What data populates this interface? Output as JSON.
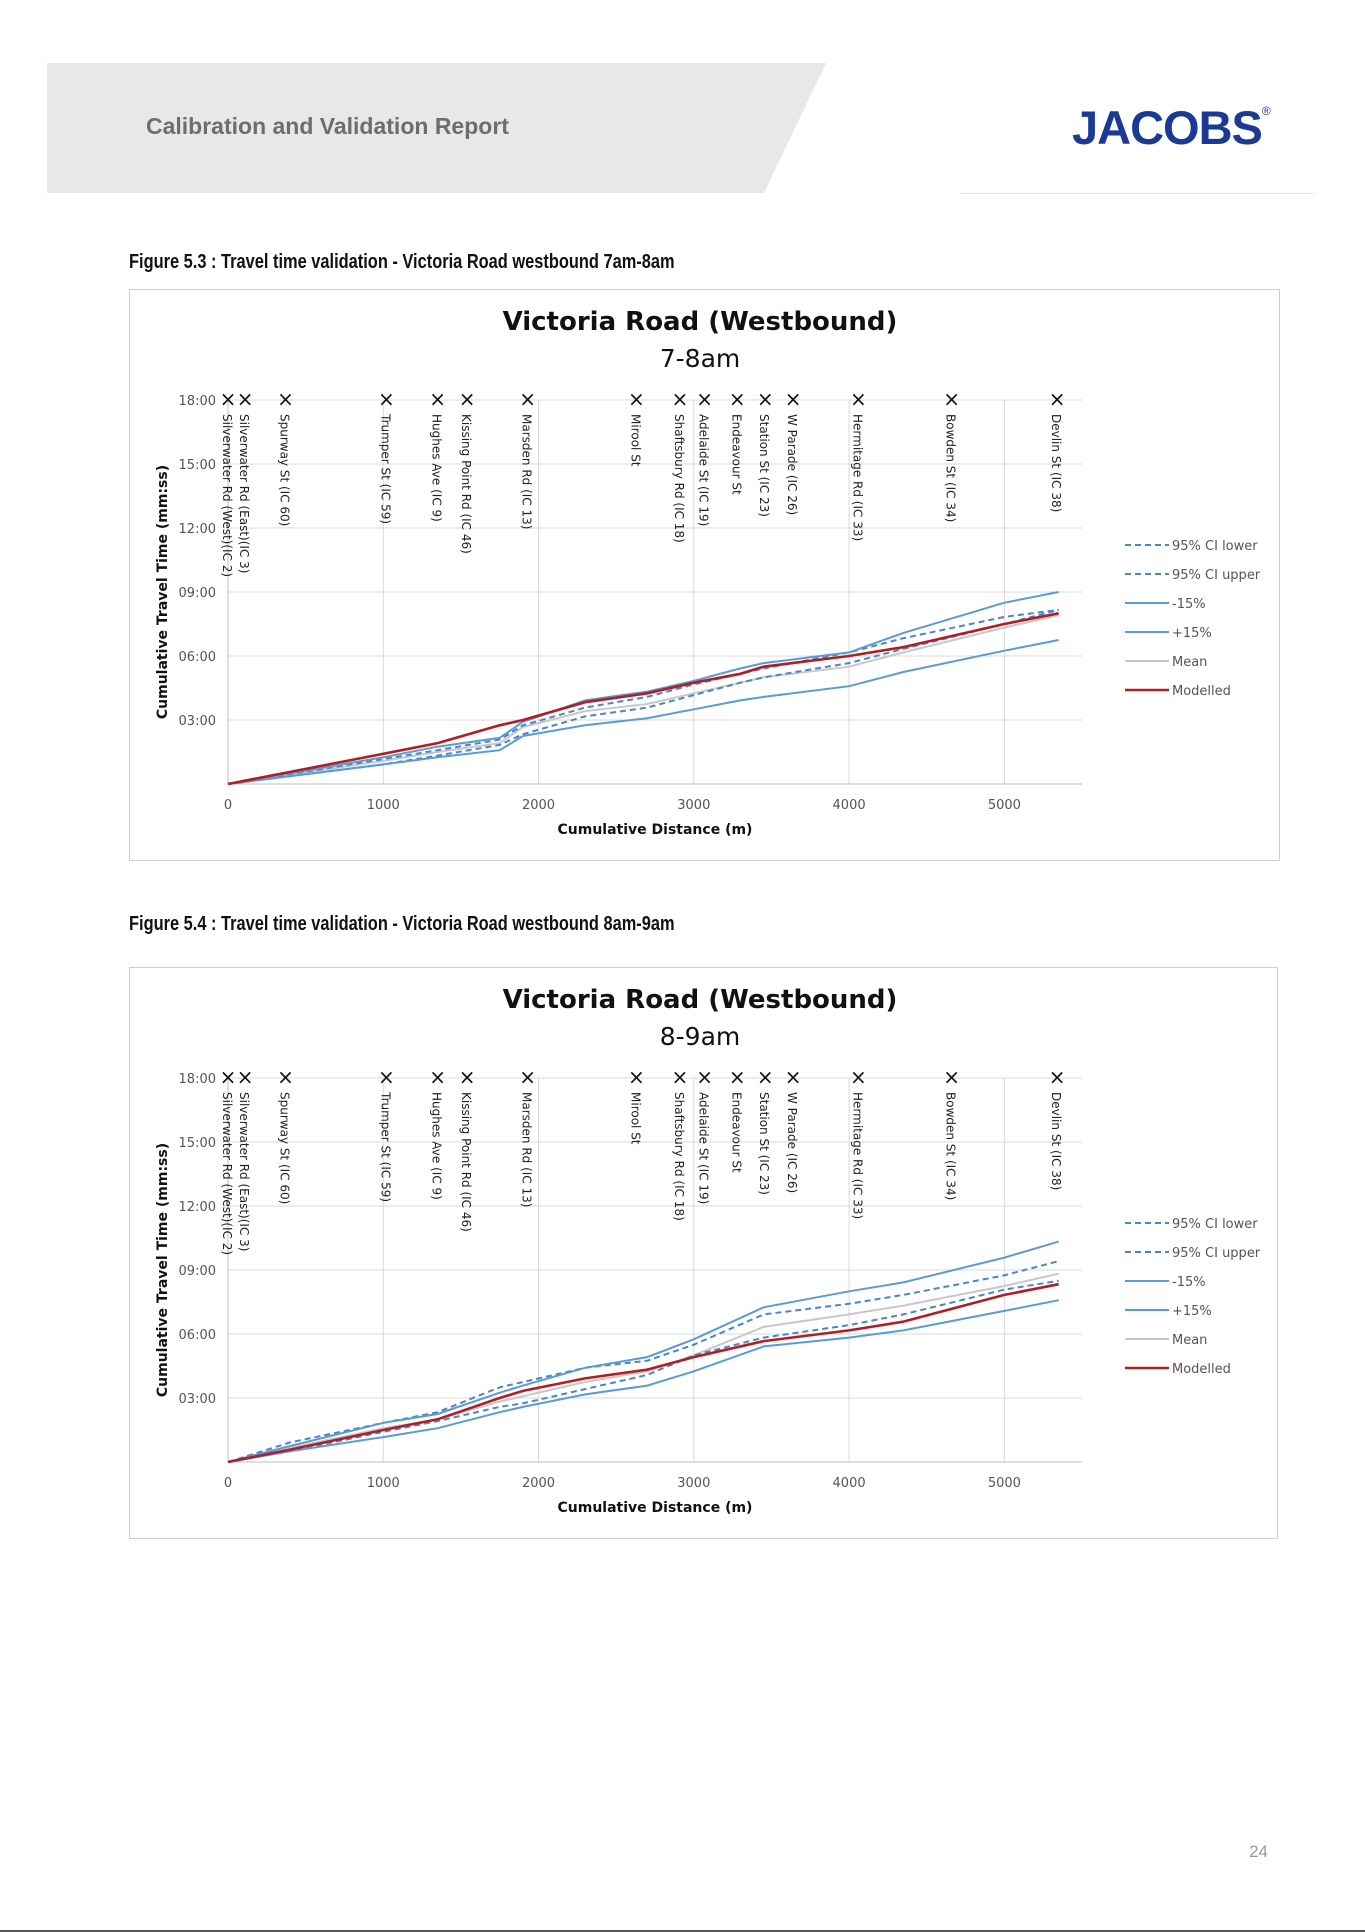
{
  "header": {
    "report_title": "Calibration and Validation Report",
    "logo_text": "JACOBS",
    "logo_mark": "®",
    "band_color": "#e8e8e8",
    "logo_color": "#1a3a93"
  },
  "figures": [
    {
      "caption": "Figure 5.3 : Travel time validation - Victoria Road westbound 7am-8am"
    },
    {
      "caption": "Figure 5.4 : Travel time validation - Victoria Road westbound 8am-9am"
    }
  ],
  "page_number": "24",
  "series_styles": [
    {
      "name": "95% CI lower",
      "color": "#4a86c5",
      "dash": true
    },
    {
      "name": "95% CI upper",
      "color": "#4a86c5",
      "dash": true
    },
    {
      "name": "-15%",
      "color": "#5b9bd5",
      "dash": false
    },
    {
      "name": "+15%",
      "color": "#5b9bd5",
      "dash": false
    },
    {
      "name": "Mean",
      "color": "#c8c8c8",
      "dash": false
    },
    {
      "name": "Modelled",
      "color": "#b01e22",
      "dash": false
    }
  ],
  "chart_data": [
    {
      "type": "line",
      "title": "Victoria Road (Westbound)",
      "subtitle": "7-8am",
      "xlabel": "Cumulative Distance (m)",
      "ylabel": "Cumulative Travel Time (mm:ss)",
      "xlim": [
        0,
        5500
      ],
      "ylim": [
        0,
        1080
      ],
      "x_ticks": [
        0,
        1000,
        2000,
        3000,
        4000,
        5000
      ],
      "y_ticks": [
        180,
        360,
        540,
        720,
        900,
        1080
      ],
      "y_tick_labels": [
        "03:00",
        "06:00",
        "09:00",
        "12:00",
        "15:00",
        "18:00"
      ],
      "grid": true,
      "legend": "right",
      "intersections": [
        {
          "x": 0,
          "label": "Silverwater Rd (West)(IC 2)"
        },
        {
          "x": 110,
          "label": "Silverwater Rd (East)(IC 3)"
        },
        {
          "x": 370,
          "label": "Spurway St (IC 60)"
        },
        {
          "x": 1020,
          "label": "Trumper St (IC 59)"
        },
        {
          "x": 1350,
          "label": "Hughes Ave (IC 9)"
        },
        {
          "x": 1540,
          "label": "Kissing Point Rd (IC 46)"
        },
        {
          "x": 1930,
          "label": "Marsden Rd (IC 13)"
        },
        {
          "x": 2630,
          "label": "Mirool St"
        },
        {
          "x": 2910,
          "label": "Shaftsbury Rd (IC 18)"
        },
        {
          "x": 3070,
          "label": "Adelaide St (IC 19)"
        },
        {
          "x": 3280,
          "label": "Endeavour St"
        },
        {
          "x": 3460,
          "label": "Station St (IC 23)"
        },
        {
          "x": 3640,
          "label": "W Parade (IC 26)"
        },
        {
          "x": 4060,
          "label": "Hermitage Rd (IC 33)"
        },
        {
          "x": 4660,
          "label": "Bowden St (IC 34)"
        },
        {
          "x": 5340,
          "label": "Devlin St (IC 38)"
        }
      ],
      "x": [
        0,
        1000,
        1350,
        1750,
        1900,
        2300,
        2700,
        3000,
        3300,
        3450,
        4000,
        4350,
        5000,
        5350
      ],
      "series": [
        {
          "name": "95% CI lower",
          "values": [
            0,
            55,
            80,
            110,
            140,
            190,
            215,
            250,
            285,
            300,
            340,
            380,
            450,
            490
          ]
        },
        {
          "name": "95% CI upper",
          "values": [
            0,
            70,
            95,
            125,
            165,
            215,
            245,
            280,
            310,
            325,
            370,
            410,
            470,
            490
          ]
        },
        {
          "name": "-15%",
          "values": [
            0,
            75,
            105,
            130,
            175,
            235,
            260,
            290,
            325,
            340,
            370,
            425,
            510,
            540
          ]
        },
        {
          "name": "+15%",
          "values": [
            0,
            55,
            75,
            95,
            135,
            165,
            185,
            210,
            235,
            245,
            275,
            315,
            375,
            405
          ]
        },
        {
          "name": "Mean",
          "values": [
            0,
            65,
            90,
            115,
            160,
            205,
            225,
            255,
            285,
            300,
            330,
            370,
            440,
            475
          ]
        },
        {
          "name": "Modelled",
          "values": [
            0,
            85,
            115,
            165,
            180,
            230,
            255,
            285,
            310,
            330,
            360,
            385,
            450,
            480
          ]
        }
      ]
    },
    {
      "type": "line",
      "title": "Victoria Road (Westbound)",
      "subtitle": "8-9am",
      "xlabel": "Cumulative Distance (m)",
      "ylabel": "Cumulative Travel Time (mm:ss)",
      "xlim": [
        0,
        5500
      ],
      "ylim": [
        0,
        1080
      ],
      "x_ticks": [
        0,
        1000,
        2000,
        3000,
        4000,
        5000
      ],
      "y_ticks": [
        180,
        360,
        540,
        720,
        900,
        1080
      ],
      "y_tick_labels": [
        "03:00",
        "06:00",
        "09:00",
        "12:00",
        "15:00",
        "18:00"
      ],
      "grid": true,
      "legend": "right",
      "intersections": [
        {
          "x": 0,
          "label": "Silverwater Rd (West)(IC 2)"
        },
        {
          "x": 110,
          "label": "Silverwater Rd (East)(IC 3)"
        },
        {
          "x": 370,
          "label": "Spurway St (IC 60)"
        },
        {
          "x": 1020,
          "label": "Trumper St (IC 59)"
        },
        {
          "x": 1350,
          "label": "Hughes Ave (IC 9)"
        },
        {
          "x": 1540,
          "label": "Kissing Point Rd (IC 46)"
        },
        {
          "x": 1930,
          "label": "Marsden Rd (IC 13)"
        },
        {
          "x": 2630,
          "label": "Mirool St"
        },
        {
          "x": 2910,
          "label": "Shaftsbury Rd (IC 18)"
        },
        {
          "x": 3070,
          "label": "Adelaide St (IC 19)"
        },
        {
          "x": 3280,
          "label": "Endeavour St"
        },
        {
          "x": 3460,
          "label": "Station St (IC 23)"
        },
        {
          "x": 3640,
          "label": "W Parade (IC 26)"
        },
        {
          "x": 4060,
          "label": "Hermitage Rd (IC 33)"
        },
        {
          "x": 4660,
          "label": "Bowden St (IC 34)"
        },
        {
          "x": 5340,
          "label": "Devlin St (IC 38)"
        }
      ],
      "x": [
        0,
        400,
        1000,
        1350,
        1750,
        1900,
        2300,
        2700,
        3000,
        3450,
        4000,
        4350,
        5000,
        5350
      ],
      "series": [
        {
          "name": "95% CI lower",
          "values": [
            0,
            30,
            85,
            115,
            155,
            165,
            205,
            245,
            300,
            350,
            385,
            415,
            485,
            510
          ]
        },
        {
          "name": "95% CI upper",
          "values": [
            0,
            55,
            110,
            140,
            210,
            225,
            265,
            285,
            330,
            415,
            445,
            470,
            525,
            565
          ]
        },
        {
          "name": "-15%",
          "values": [
            0,
            45,
            110,
            135,
            195,
            215,
            265,
            295,
            345,
            435,
            480,
            505,
            575,
            620
          ]
        },
        {
          "name": "+15%",
          "values": [
            0,
            30,
            70,
            95,
            140,
            155,
            190,
            215,
            255,
            325,
            350,
            370,
            425,
            455
          ]
        },
        {
          "name": "Mean",
          "values": [
            0,
            40,
            95,
            120,
            170,
            185,
            225,
            255,
            300,
            380,
            415,
            440,
            495,
            530
          ]
        },
        {
          "name": "Modelled",
          "values": [
            0,
            35,
            90,
            120,
            180,
            200,
            235,
            260,
            295,
            340,
            370,
            395,
            470,
            500
          ]
        }
      ]
    }
  ]
}
